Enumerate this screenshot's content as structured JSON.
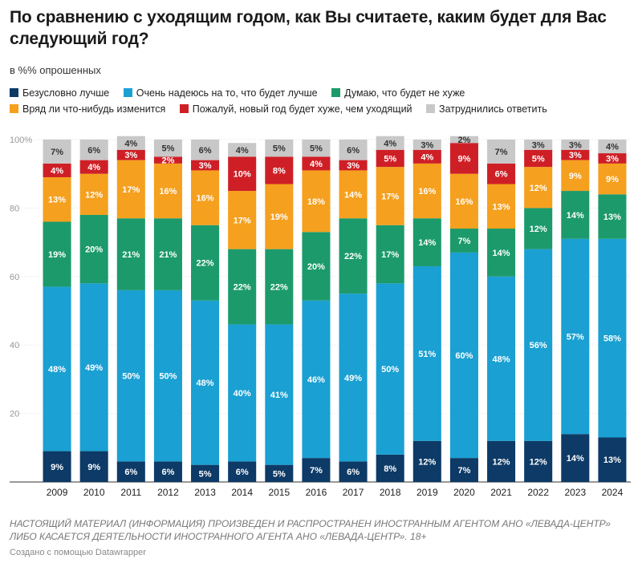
{
  "header": {
    "title": "По сравнению с уходящим годом, как Вы считаете, каким будет для Вас следующий год?",
    "subtitle": "в %% опрошенных"
  },
  "footer": {
    "note": "НАСТОЯЩИЙ МАТЕРИАЛ (ИНФОРМАЦИЯ) ПРОИЗВЕДЕН И РАСПРОСТРАНЕН ИНОСТРАННЫМ АГЕНТОМ АНО «ЛЕВАДА-ЦЕНТР» ЛИБО КАСАЕТСЯ ДЕЯТЕЛЬНОСТИ ИНОСТРАННОГО АГЕНТА АНО «ЛЕВАДА-ЦЕНТР». 18+",
    "credit": "Создано с помощью Datawrapper"
  },
  "chart_data": {
    "type": "bar",
    "stacked": true,
    "title": "По сравнению с уходящим годом, как Вы считаете, каким будет для Вас следующий год?",
    "ylabel": "",
    "xlabel": "",
    "ylim": [
      0,
      100
    ],
    "yticks": [
      "20",
      "40",
      "60",
      "80",
      "100%"
    ],
    "grid": true,
    "legend_position": "top",
    "categories": [
      "2009",
      "2010",
      "2011",
      "2012",
      "2013",
      "2014",
      "2015",
      "2016",
      "2017",
      "2018",
      "2019",
      "2020",
      "2021",
      "2022",
      "2023",
      "2024"
    ],
    "series": [
      {
        "name": "Безусловно лучше",
        "color": "#0d3a66",
        "values": [
          9,
          9,
          6,
          6,
          5,
          6,
          5,
          7,
          6,
          8,
          12,
          7,
          12,
          12,
          14,
          13
        ]
      },
      {
        "name": "Очень надеюсь на то, что будет лучше",
        "color": "#1aa0d2",
        "values": [
          48,
          49,
          50,
          50,
          48,
          40,
          41,
          46,
          49,
          50,
          51,
          60,
          48,
          56,
          57,
          58
        ]
      },
      {
        "name": "Думаю, что будет не хуже",
        "color": "#1c9a6c",
        "values": [
          19,
          20,
          21,
          21,
          22,
          22,
          22,
          20,
          22,
          17,
          14,
          7,
          14,
          12,
          14,
          13
        ]
      },
      {
        "name": "Вряд ли что-нибудь изменится",
        "color": "#f5a01e",
        "values": [
          13,
          12,
          17,
          16,
          16,
          17,
          19,
          18,
          14,
          17,
          16,
          16,
          13,
          12,
          9,
          9
        ]
      },
      {
        "name": "Пожалуй, новый год будет хуже, чем уходящий",
        "color": "#cf1f26",
        "values": [
          4,
          4,
          3,
          2,
          3,
          10,
          8,
          4,
          3,
          5,
          4,
          9,
          6,
          5,
          3,
          3
        ]
      },
      {
        "name": "Затруднились ответить",
        "color": "#c8c8c8",
        "values": [
          7,
          6,
          4,
          5,
          6,
          4,
          5,
          5,
          6,
          4,
          3,
          2,
          7,
          3,
          3,
          4
        ]
      }
    ]
  }
}
